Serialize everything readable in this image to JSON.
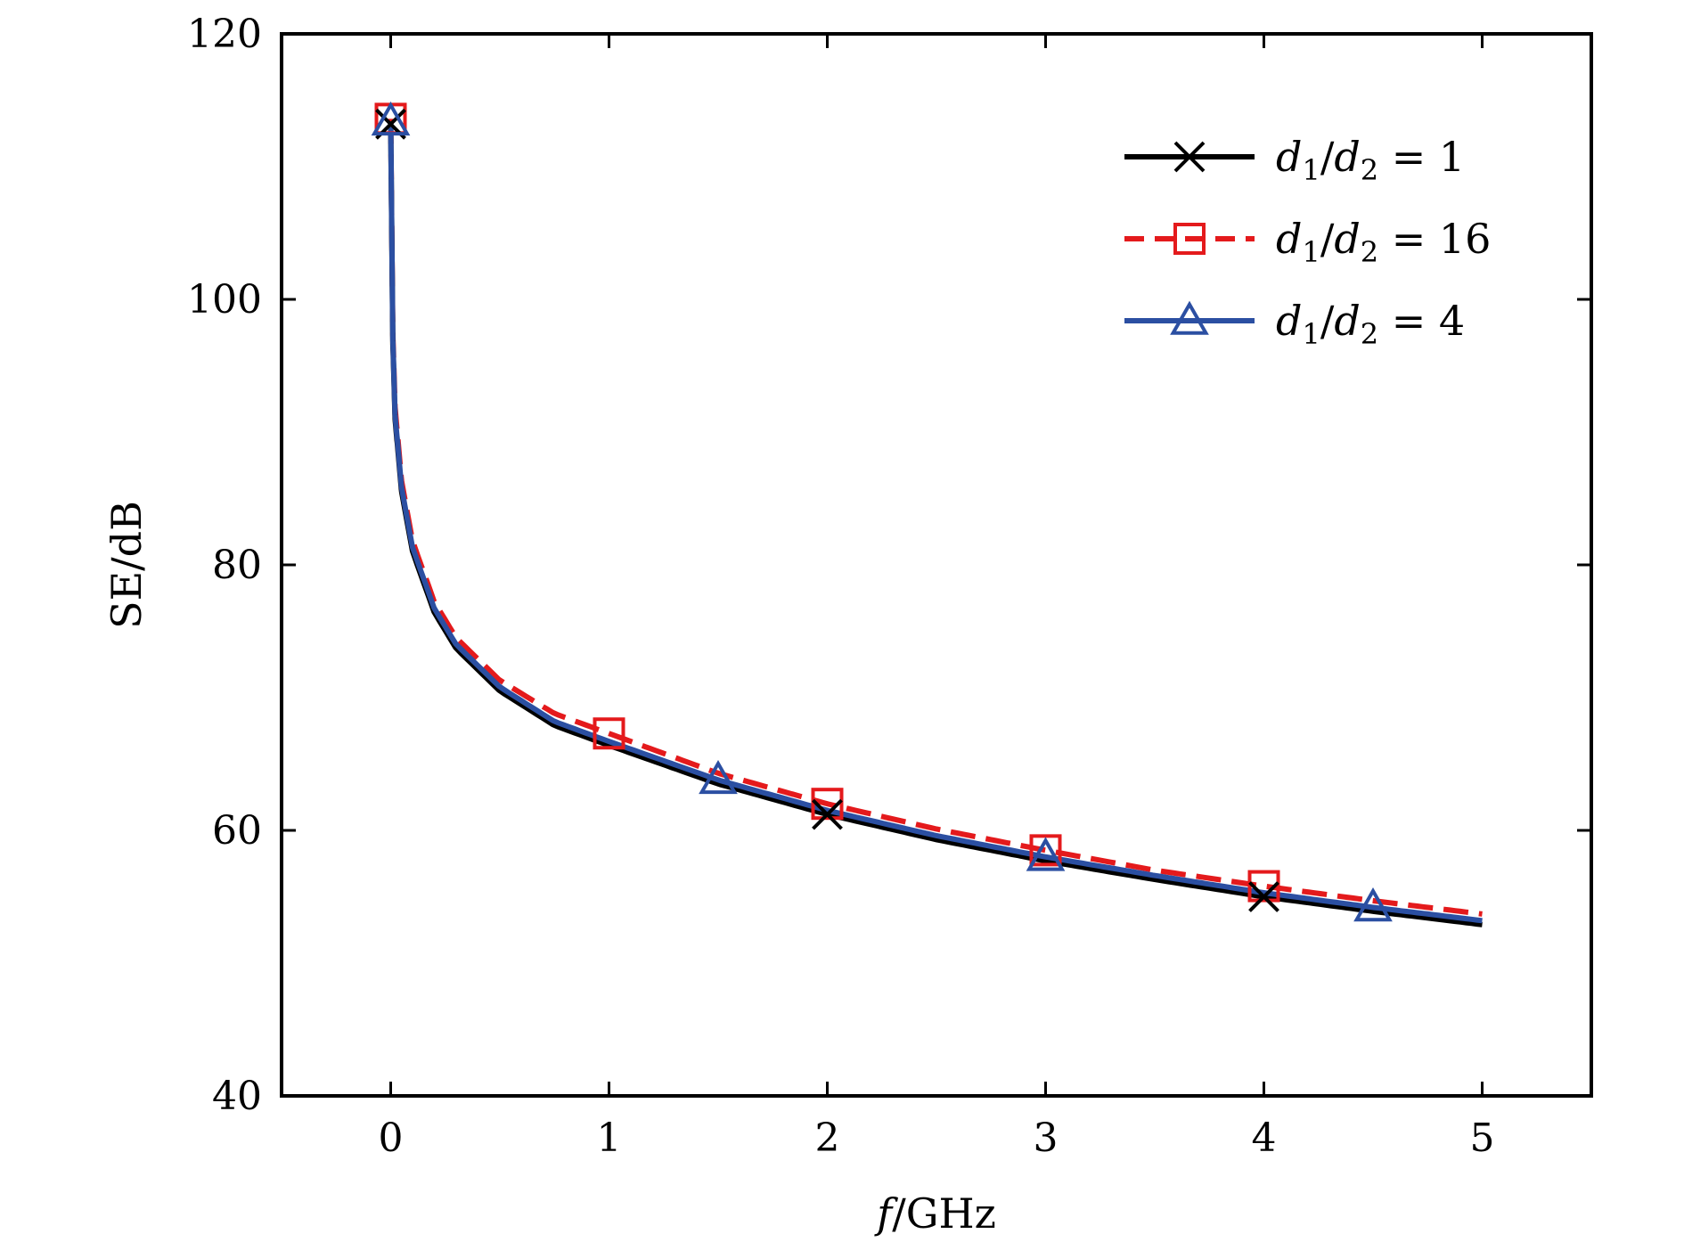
{
  "chart_data": {
    "type": "line",
    "title": "",
    "xlabel": "f/GHz",
    "ylabel": "SE/dB",
    "xlim": [
      -0.5,
      5.5
    ],
    "ylim": [
      40,
      120
    ],
    "xticks": [
      0,
      1,
      2,
      3,
      4,
      5
    ],
    "yticks": [
      40,
      60,
      80,
      100,
      120
    ],
    "grid": false,
    "legend_position": "top-right",
    "series": [
      {
        "name": "d1/d2 = 1",
        "color": "#000000",
        "marker": "x",
        "dash": "solid",
        "x": [
          0.0,
          0.01,
          0.02,
          0.05,
          0.1,
          0.2,
          0.3,
          0.5,
          0.75,
          1.0,
          1.5,
          2.0,
          2.5,
          3.0,
          3.5,
          4.0,
          4.5,
          5.0
        ],
        "y": [
          113.2,
          96.6,
          91.0,
          85.5,
          81.0,
          76.4,
          73.7,
          70.5,
          67.9,
          66.4,
          63.5,
          61.2,
          59.3,
          57.7,
          56.3,
          55.0,
          53.9,
          52.9
        ],
        "marker_x": [
          0.0,
          2.0,
          4.0
        ],
        "marker_y": [
          113.2,
          61.2,
          55.0
        ]
      },
      {
        "name": "d1/d2 = 16",
        "color": "#e41a1c",
        "marker": "square",
        "dash": "dashed",
        "x": [
          0.0,
          0.01,
          0.02,
          0.05,
          0.1,
          0.2,
          0.3,
          0.5,
          0.75,
          1.0,
          1.5,
          2.0,
          2.5,
          3.0,
          3.5,
          4.0,
          4.5,
          5.0
        ],
        "y": [
          113.6,
          97.3,
          91.9,
          86.3,
          81.8,
          77.2,
          74.5,
          71.3,
          68.8,
          67.3,
          64.3,
          62.0,
          60.1,
          58.5,
          57.0,
          55.8,
          54.7,
          53.7
        ],
        "marker_x": [
          0.0,
          1.0,
          2.0,
          3.0,
          4.0
        ],
        "marker_y": [
          113.6,
          67.3,
          62.0,
          58.5,
          55.8
        ]
      },
      {
        "name": "d1/d2 = 4",
        "color": "#2b4fa2",
        "marker": "triangle",
        "dash": "solid",
        "x": [
          0.0,
          0.01,
          0.02,
          0.05,
          0.1,
          0.2,
          0.3,
          0.5,
          0.75,
          1.0,
          1.5,
          2.0,
          2.5,
          3.0,
          3.5,
          4.0,
          4.5,
          5.0
        ],
        "y": [
          113.4,
          96.9,
          91.3,
          85.8,
          81.3,
          76.7,
          74.0,
          70.8,
          68.2,
          66.7,
          63.8,
          61.5,
          59.6,
          58.0,
          56.6,
          55.3,
          54.2,
          53.2
        ],
        "marker_x": [
          0.0,
          1.5,
          3.0,
          4.5
        ],
        "marker_y": [
          113.4,
          63.8,
          58.0,
          54.2
        ]
      }
    ]
  }
}
